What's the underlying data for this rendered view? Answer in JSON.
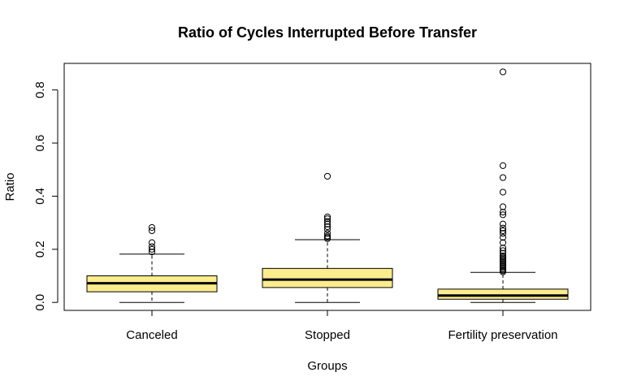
{
  "chart_data": {
    "type": "boxplot",
    "title": "Ratio of Cycles Interrupted Before Transfer",
    "xlabel": "Groups",
    "ylabel": "Ratio",
    "ylim": [
      -0.03,
      0.9
    ],
    "yticks": [
      0.0,
      0.2,
      0.4,
      0.6,
      0.8
    ],
    "ytick_labels": [
      "0.0",
      "0.2",
      "0.4",
      "0.6",
      "0.8"
    ],
    "box_fill": "#fbec8e",
    "groups": [
      {
        "name": "Canceled",
        "whisker_low": 0.0,
        "q1": 0.04,
        "median": 0.072,
        "q3": 0.1,
        "whisker_high": 0.182,
        "outliers": [
          0.19,
          0.2,
          0.21,
          0.225,
          0.27,
          0.282
        ]
      },
      {
        "name": "Stopped",
        "whisker_low": 0.0,
        "q1": 0.056,
        "median": 0.086,
        "q3": 0.128,
        "whisker_high": 0.236,
        "outliers": [
          0.24,
          0.245,
          0.25,
          0.26,
          0.275,
          0.285,
          0.295,
          0.305,
          0.315,
          0.322,
          0.475
        ]
      },
      {
        "name": "Fertility preservation",
        "whisker_low": 0.0,
        "q1": 0.012,
        "median": 0.026,
        "q3": 0.05,
        "whisker_high": 0.113,
        "outliers": [
          0.115,
          0.12,
          0.125,
          0.13,
          0.135,
          0.14,
          0.145,
          0.15,
          0.155,
          0.16,
          0.165,
          0.17,
          0.175,
          0.185,
          0.195,
          0.205,
          0.225,
          0.245,
          0.26,
          0.27,
          0.28,
          0.295,
          0.33,
          0.34,
          0.36,
          0.415,
          0.47,
          0.515,
          0.868
        ]
      }
    ]
  }
}
